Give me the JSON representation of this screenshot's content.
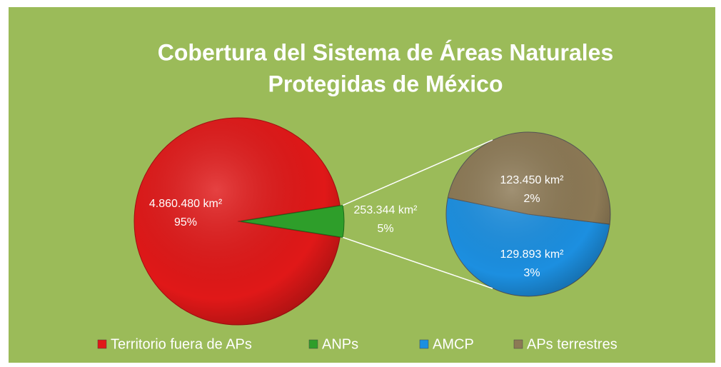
{
  "chart_data": {
    "type": "pie",
    "title": [
      "Cobertura del Sistema de Áreas Naturales",
      "Protegidas de México"
    ],
    "categories": [
      "Territorio fuera de APs",
      "ANPs"
    ],
    "values": [
      4860480,
      253344
    ],
    "value_labels": [
      "4.860.480 km²",
      "253.344 km²"
    ],
    "percent_labels": [
      "95%",
      "5%"
    ],
    "colors": [
      "#e01818",
      "#2e9e2a"
    ],
    "secondary": {
      "categories": [
        "AMCP",
        "APs terrestres"
      ],
      "values": [
        129893,
        123450
      ],
      "value_labels": [
        "129.893 km²",
        "123.450 km²"
      ],
      "percent_labels": [
        "3%",
        "2%"
      ],
      "colors": [
        "#1c8fe0",
        "#8c7955"
      ]
    },
    "legend": "bottom"
  }
}
